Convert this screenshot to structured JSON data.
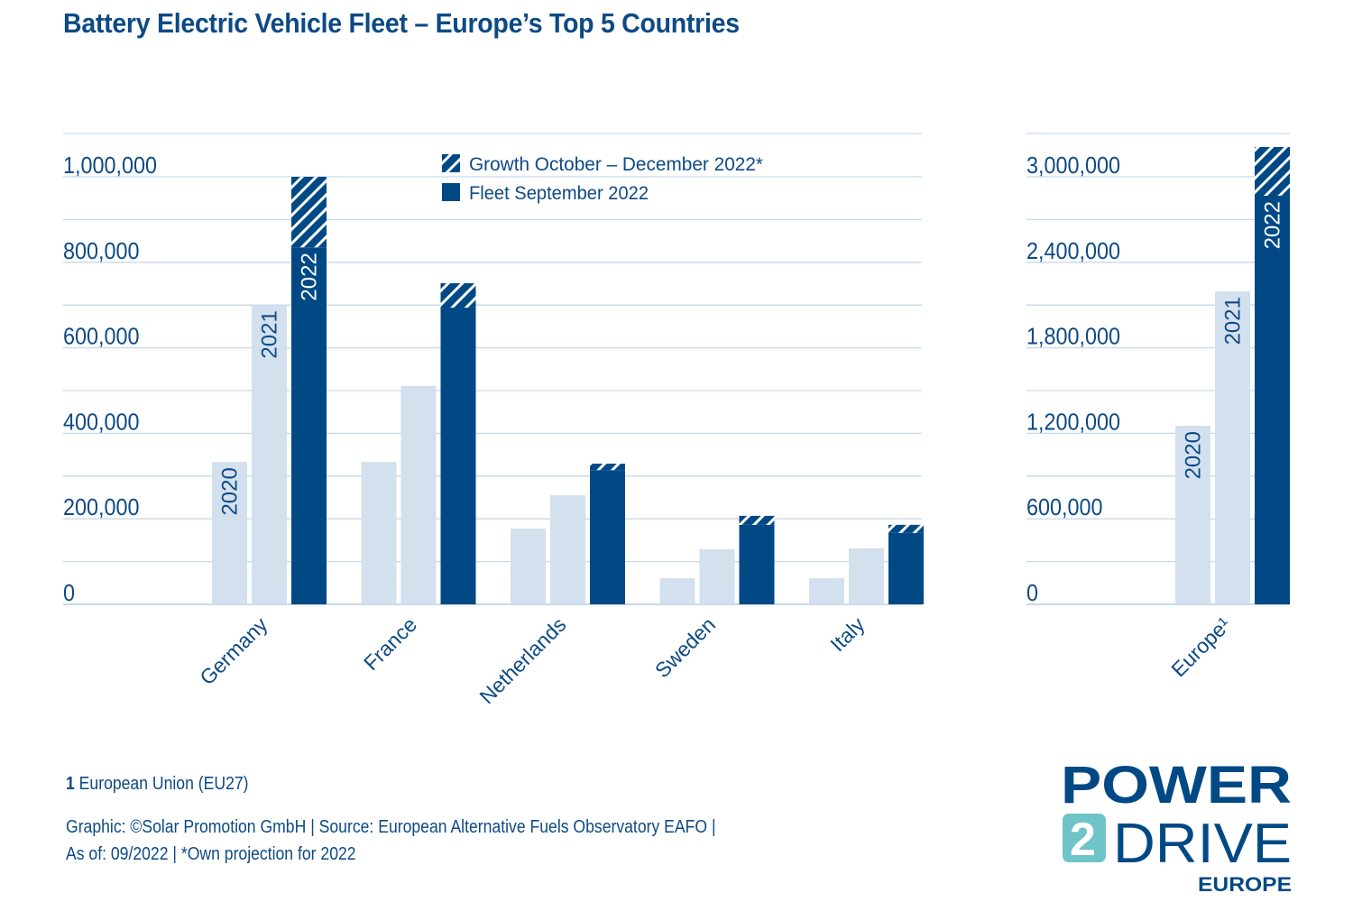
{
  "header": {
    "title": "Battery Electric Vehicle Fleet –  Europe’s Top 5 Countries"
  },
  "colors": {
    "dark_blue": "#004985",
    "light_blue": "#d3e0ee",
    "grid": "#c6d9ec",
    "text": "#0d4a85",
    "logo_teal": "#6ec4c6"
  },
  "chart_data": [
    {
      "type": "bar",
      "title": "Battery Electric Vehicle Fleet – Europe’s Top 5 Countries",
      "xlabel": "",
      "ylabel": "",
      "ylim": [
        0,
        1000000
      ],
      "yticks": [
        0,
        200000,
        400000,
        600000,
        800000,
        1000000
      ],
      "ytick_labels": [
        "0",
        "200,000",
        "400,000",
        "600,000",
        "800,000",
        "1,000,000"
      ],
      "grid": true,
      "categories": [
        "Germany",
        "France",
        "Netherlands",
        "Sweden",
        "Italy"
      ],
      "series": [
        {
          "name": "2020",
          "values": [
            333000,
            333000,
            177000,
            61000,
            61000
          ]
        },
        {
          "name": "2021",
          "values": [
            700000,
            511000,
            255000,
            129000,
            131000
          ]
        },
        {
          "name": "2022 Fleet September 2022",
          "values": [
            835000,
            694000,
            314000,
            186000,
            167000
          ]
        },
        {
          "name": "2022 Growth October – December 2022*",
          "values": [
            165000,
            57000,
            15000,
            21000,
            19000
          ],
          "stacked_on": "2022 Fleet September 2022"
        }
      ],
      "bar_year_labels": [
        "2020",
        "2021",
        "2022"
      ],
      "legend": {
        "position": "top-center",
        "entries": [
          {
            "label": "Growth October – December 2022*",
            "style": "hatched"
          },
          {
            "label": "Fleet September 2022",
            "style": "solid"
          }
        ]
      }
    },
    {
      "type": "bar",
      "title": "",
      "ylim": [
        0,
        3000000
      ],
      "yticks": [
        0,
        600000,
        1200000,
        1800000,
        2400000,
        3000000
      ],
      "ytick_labels": [
        "0",
        "600,000",
        "1,200,000",
        "1,800,000",
        "2,400,000",
        "3,000,000"
      ],
      "grid": true,
      "categories": [
        "Europe¹"
      ],
      "series": [
        {
          "name": "2020",
          "values": [
            1253000
          ]
        },
        {
          "name": "2021",
          "values": [
            2196000
          ]
        },
        {
          "name": "2022 Fleet September 2022",
          "values": [
            2867000
          ]
        },
        {
          "name": "2022 Growth October – December 2022*",
          "values": [
            342000
          ],
          "stacked_on": "2022 Fleet September 2022"
        }
      ],
      "bar_year_labels": [
        "2020",
        "2021",
        "2022"
      ]
    }
  ],
  "footer": {
    "footnote_number": "1",
    "footnote_text": " European Union (EU27)",
    "source_line1": "Graphic: ©Solar Promotion GmbH | Source: European Alternative Fuels Observatory EAFO |",
    "source_line2": "As of: 09/2022 | *Own projection for 2022"
  },
  "logo": {
    "line1": "POWER",
    "digit": "2",
    "line2": "DRIVE",
    "line3": "EUROPE"
  }
}
